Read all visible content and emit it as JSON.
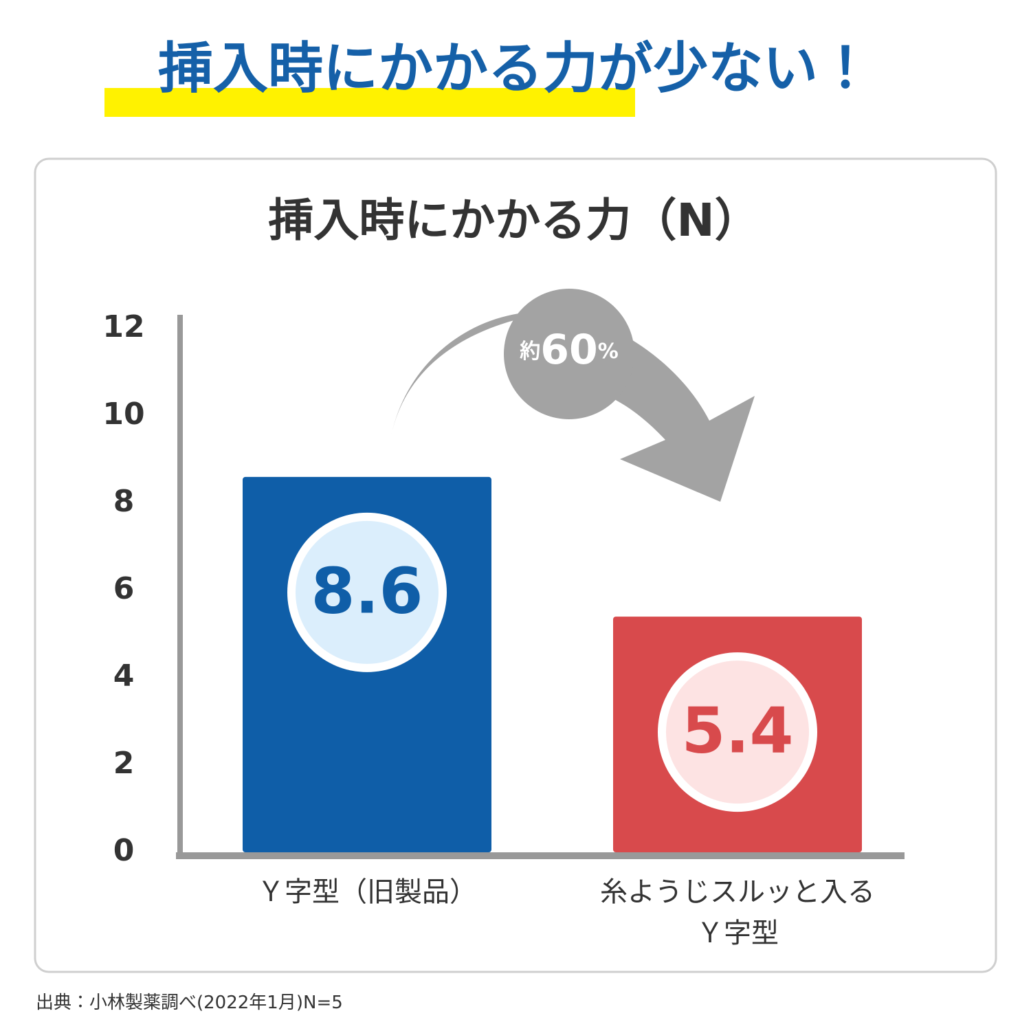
{
  "headline": "挿入時にかかる力が少ない！",
  "chart_data": {
    "type": "bar",
    "title": "挿入時にかかる力（N）",
    "categories": [
      "Ｙ字型（旧製品）",
      "糸ようじスルッと入る\nＹ字型"
    ],
    "values": [
      8.6,
      5.4
    ],
    "colors": [
      "#0f5ea8",
      "#d84a4c"
    ],
    "label_colors": [
      "#0f5ea8",
      "#d84a4c"
    ],
    "badge_colors": [
      "#dbeefc",
      "#fde3e3"
    ],
    "ylim": [
      0,
      12
    ],
    "yticks": [
      0,
      2,
      4,
      6,
      8,
      10,
      12
    ],
    "annotation": [
      "約",
      "60",
      "%"
    ]
  },
  "source": "出典：小林製薬調べ(2022年1月)N=5"
}
